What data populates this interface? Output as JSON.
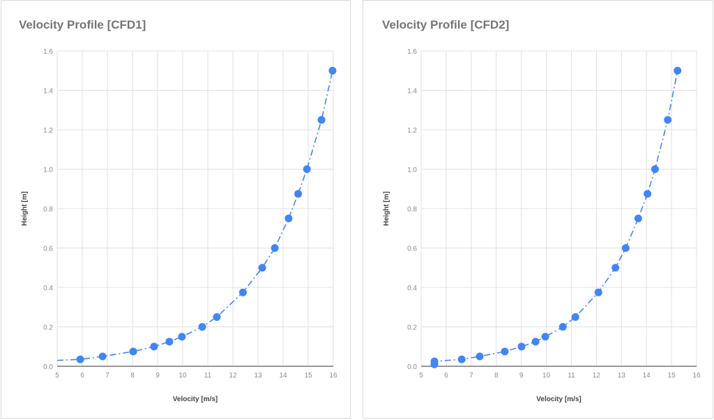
{
  "colors": {
    "series": "#4285f4",
    "grid": "#e0e0e0",
    "axis": "#757575",
    "title": "#757575"
  },
  "chart_data": [
    {
      "type": "scatter",
      "title": "Velocity Profile [CFD1]",
      "xlabel": "Velocity [m/s]",
      "ylabel": "Height [m]",
      "xlim": [
        5,
        16
      ],
      "ylim": [
        0,
        1.6
      ],
      "xticks": [
        "5",
        "6",
        "7",
        "8",
        "9",
        "10",
        "11",
        "12",
        "13",
        "14",
        "15",
        "16"
      ],
      "yticks": [
        "0.0",
        "0.2",
        "0.4",
        "0.6",
        "0.8",
        "1.0",
        "1.2",
        "1.4",
        "1.6"
      ],
      "grid": true,
      "legend": "none",
      "line_style": "dash-dot trendline",
      "series": [
        {
          "name": "CFD1",
          "x": [
            5.92,
            6.81,
            8.03,
            8.86,
            9.47,
            9.97,
            10.78,
            11.36,
            12.4,
            13.17,
            13.67,
            14.22,
            14.6,
            14.95,
            15.53,
            15.97
          ],
          "y": [
            0.035,
            0.05,
            0.075,
            0.1,
            0.125,
            0.15,
            0.2,
            0.25,
            0.375,
            0.5,
            0.6,
            0.75,
            0.875,
            1.0,
            1.25,
            1.5
          ]
        }
      ],
      "line_start": [
        5.0,
        0.03
      ]
    },
    {
      "type": "scatter",
      "title": "Velocity Profile [CFD2]",
      "xlabel": "Velocity [m/s]",
      "ylabel": "Height [m]",
      "xlim": [
        5,
        16
      ],
      "ylim": [
        0,
        1.6
      ],
      "xticks": [
        "5",
        "6",
        "7",
        "8",
        "9",
        "10",
        "11",
        "12",
        "13",
        "14",
        "15",
        "16"
      ],
      "yticks": [
        "0.0",
        "0.2",
        "0.4",
        "0.6",
        "0.8",
        "1.0",
        "1.2",
        "1.4",
        "1.6"
      ],
      "grid": true,
      "legend": "none",
      "line_style": "dash-dot trendline",
      "series": [
        {
          "name": "CFD2",
          "x": [
            5.53,
            5.53,
            6.62,
            7.34,
            8.34,
            9.01,
            9.57,
            9.96,
            10.66,
            11.16,
            12.08,
            12.76,
            13.17,
            13.67,
            14.04,
            14.34,
            14.85,
            15.24
          ],
          "y": [
            0.01,
            0.025,
            0.035,
            0.05,
            0.075,
            0.1,
            0.125,
            0.15,
            0.2,
            0.25,
            0.375,
            0.5,
            0.6,
            0.75,
            0.875,
            1.0,
            1.25,
            1.5
          ]
        }
      ],
      "line_start": null
    }
  ]
}
